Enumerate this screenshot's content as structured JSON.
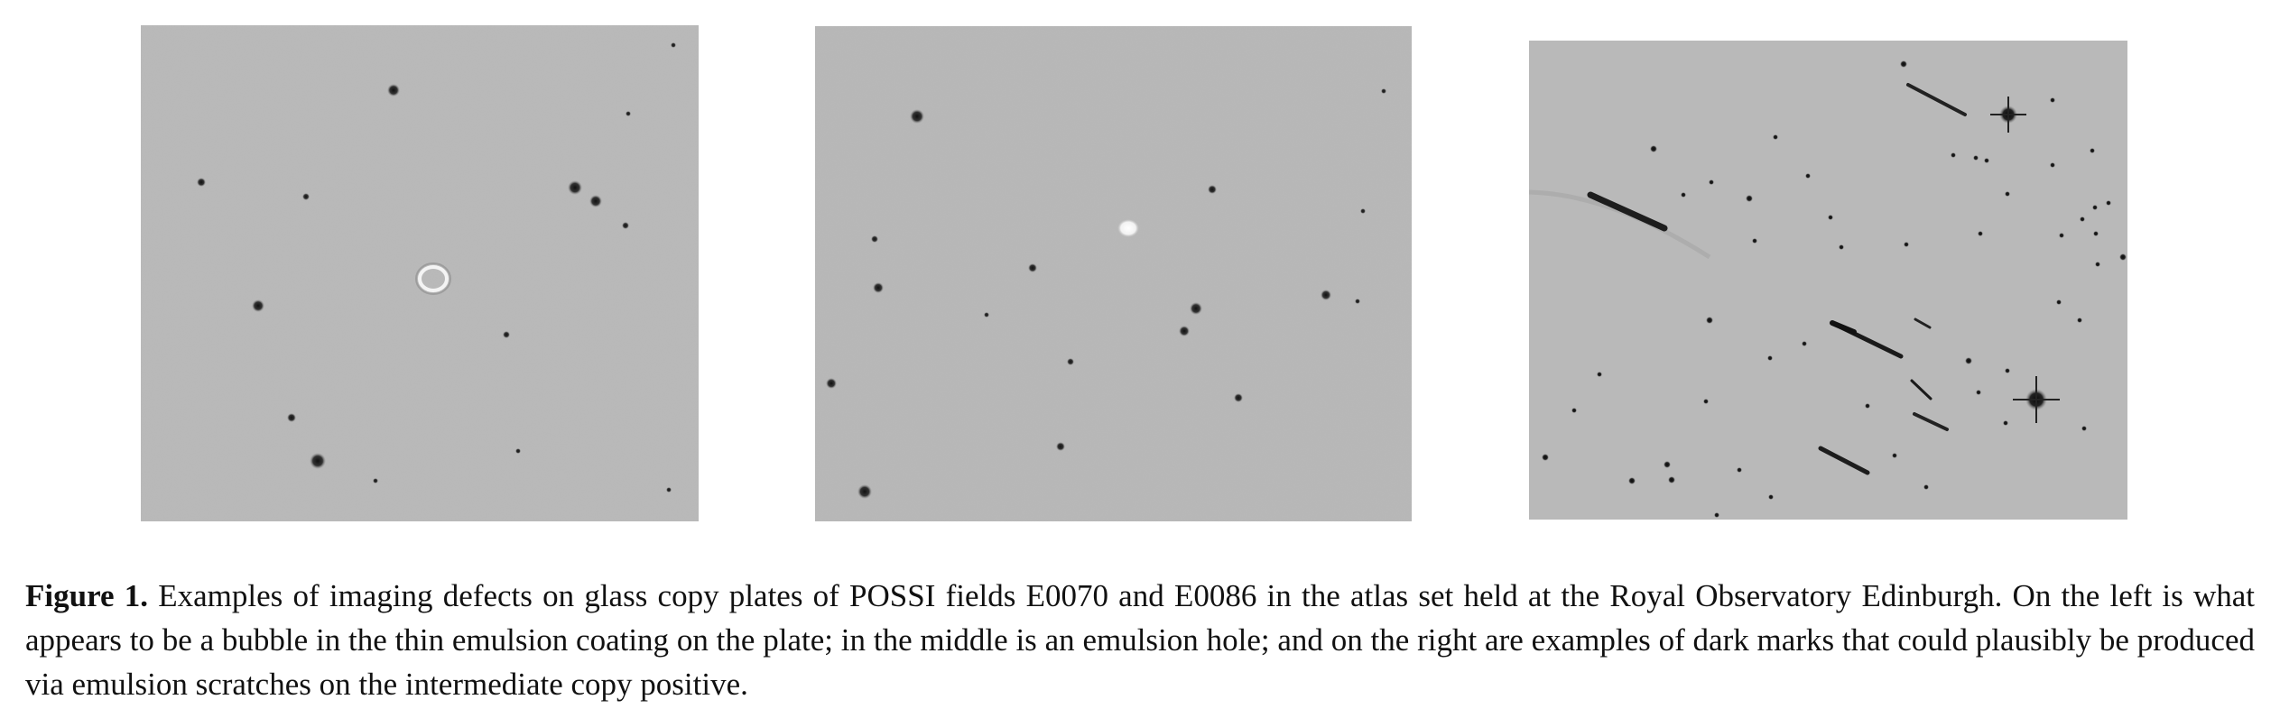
{
  "figure": {
    "panels": [
      {
        "id": "left",
        "subject": "bubble in the thin emulsion coating",
        "background_color": "#b9b9b9"
      },
      {
        "id": "middle",
        "subject": "emulsion hole",
        "background_color": "#b9b9b9"
      },
      {
        "id": "right",
        "subject": "dark marks from emulsion scratches",
        "background_color": "#b9b9b9"
      }
    ],
    "caption": {
      "label": "Figure 1.",
      "text": "Examples of imaging defects on glass copy plates of POSSI fields E0070 and E0086 in the atlas set held at the Royal Observatory Edinburgh. On the left is what appears to be a bubble in the thin emulsion coating on the plate; in the middle is an emulsion hole; and on the right are examples of dark marks that could plausibly be produced via emulsion scratches on the intermediate copy positive."
    }
  }
}
